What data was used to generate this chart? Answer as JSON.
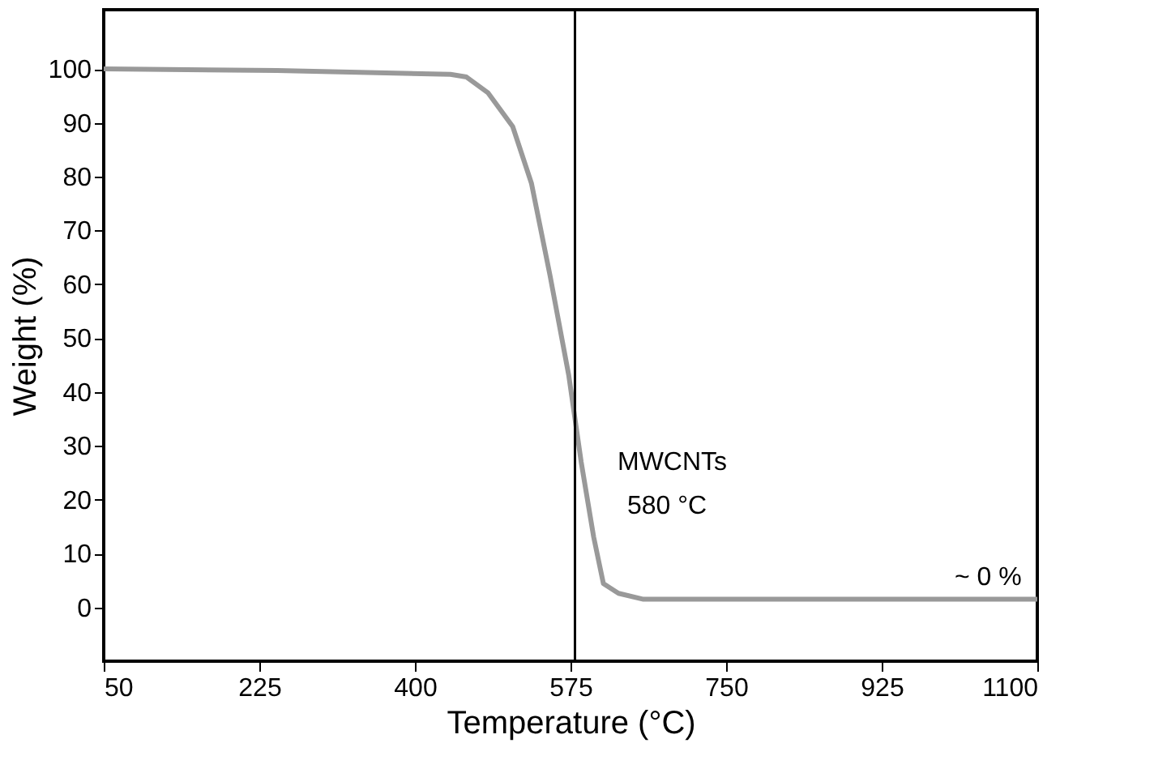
{
  "chart_data": {
    "type": "line",
    "xlabel": "Temperature (°C)",
    "ylabel": "Weight  (%)",
    "x": [
      50,
      245,
      440,
      458,
      482,
      510,
      531,
      552,
      573,
      587,
      601,
      612,
      629,
      657,
      1100
    ],
    "series": [
      {
        "color": "#999999",
        "values": [
          100,
          99.7,
          99,
          98.5,
          95.6,
          89.3,
          78.8,
          61.6,
          43.1,
          27,
          13.1,
          4.4,
          2.6,
          1.5,
          1.5
        ]
      }
    ],
    "xlim": [
      50,
      1100
    ],
    "xticks": [
      50,
      225,
      400,
      575,
      750,
      925,
      {
        "value": 1100,
        "label": "1100"
      }
    ],
    "ylim": [
      -10,
      111
    ],
    "yticks": [
      0,
      10,
      20,
      30,
      40,
      50,
      60,
      70,
      80,
      90,
      100
    ],
    "grid": false,
    "marker": "none",
    "line_style": "solid",
    "ref_lines": [
      {
        "axis": "x",
        "value": 580,
        "label": null,
        "color": "#000000"
      }
    ],
    "annotations": [
      "MWCNTs",
      "580 °C",
      "~ 0 %"
    ]
  }
}
